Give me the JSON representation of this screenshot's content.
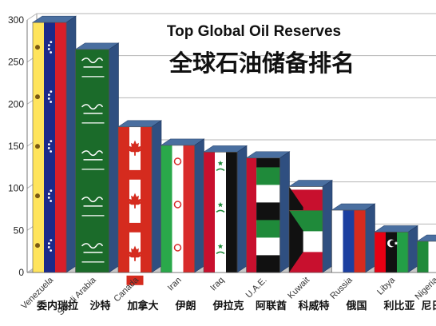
{
  "chart_data": {
    "type": "bar",
    "title": "Top Global Oil Reserves",
    "subtitle": "全球石油储备排名",
    "xlabel": "",
    "ylabel": "",
    "ylim": [
      0,
      300
    ],
    "yticks": [
      0,
      50,
      100,
      150,
      200,
      250,
      300
    ],
    "grid": true,
    "categories": [
      "Venezuela",
      "Saudi Arabia",
      "Canada",
      "Iran",
      "Iraq",
      "U.A.E.",
      "Kuwait",
      "Russia",
      "Libya",
      "Nigeria"
    ],
    "categories_zh": [
      "委内瑞拉",
      "沙特",
      "加拿大",
      "伊朗",
      "伊拉克",
      "阿联酋",
      "科威特",
      "俄国",
      "利比亚",
      "尼日利亚"
    ],
    "values": [
      297,
      265,
      173,
      151,
      143,
      136,
      102,
      74,
      48,
      37
    ],
    "flags": [
      "venezuela",
      "saudi-arabia",
      "canada",
      "iran",
      "iraq",
      "uae",
      "kuwait",
      "russia",
      "libya",
      "nigeria"
    ]
  }
}
